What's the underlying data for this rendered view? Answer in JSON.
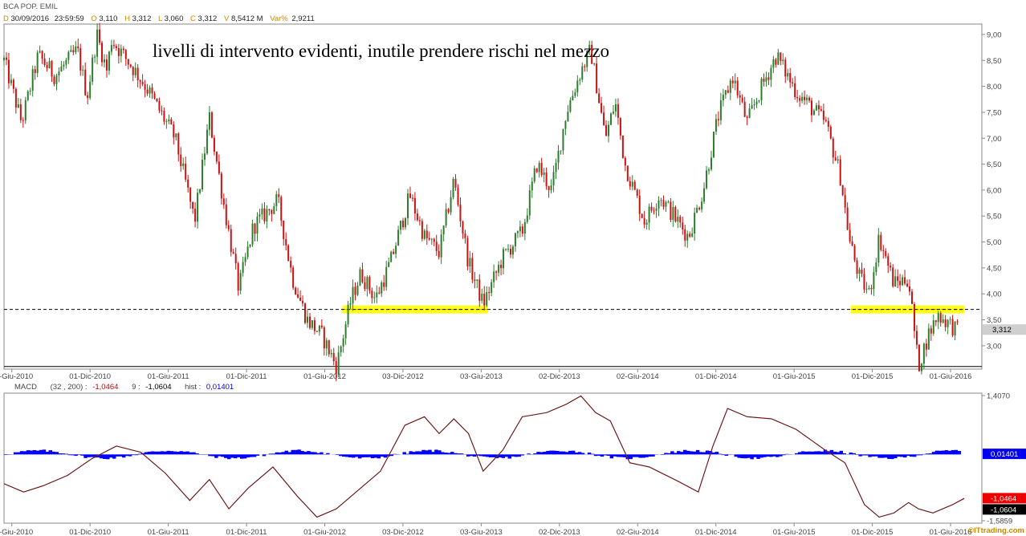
{
  "header": {
    "symbol": "BCA POP. EMIL",
    "d_label": "D",
    "date": "30/09/2016",
    "time": "23:59:59",
    "o_label": "O",
    "open": "3,110",
    "h_label": "H",
    "high": "3,312",
    "l_label": "L",
    "low": "3,060",
    "c_label": "C",
    "close": "3,312",
    "v_label": "V",
    "volume": "8,5412 M",
    "var_label": "Var%",
    "var": "2,9211"
  },
  "macd_header": {
    "name": "MACD",
    "params": "(32 , 200) :",
    "macd_value": "-1,0464",
    "signal_label": "9 :",
    "signal_value": "-1,0604",
    "hist_label": "hist :",
    "hist_value": "0,01401"
  },
  "watermark": "©ITtrading.com",
  "colors": {
    "up": "#2e7d2e",
    "down": "#cc1111",
    "macd_line": "#5a1010",
    "signal_line": "#dd8888",
    "hist": "#0000ff",
    "highlight": "#ffff00",
    "last_price_box": "#cfcfcf",
    "hist_box": "#0000ee",
    "macd_box": "#ee0000",
    "signal_box": "#000000"
  },
  "chart_data": [
    {
      "type": "candlestick",
      "title": "livelli di intervento evidenti, inutile prendere rischi nel mezzo",
      "x_tick_labels": [
        "01-Giu-2010",
        "01-Dic-2010",
        "01-Giu-2011",
        "01-Dic-2011",
        "01-Giu-2012",
        "03-Dic-2012",
        "03-Giu-2013",
        "02-Dic-2013",
        "02-Giu-2014",
        "01-Dic-2014",
        "01-Giu-2015",
        "01-Dic-2015",
        "01-Giu-2016"
      ],
      "y_tick_labels": [
        "3,00",
        "3,50",
        "4,00",
        "4,50",
        "5,00",
        "5,50",
        "6,00",
        "6,50",
        "7,00",
        "7,50",
        "8,00",
        "8,50",
        "9,00"
      ],
      "ylim": [
        2.55,
        9.2
      ],
      "last_price": 3.312,
      "last_price_label": "3,312",
      "resistance_level": 3.7,
      "support_level": 2.6,
      "highlight_zones": [
        {
          "x_from": 0.346,
          "x_to": 0.495,
          "level": 3.7
        },
        {
          "x_from": 0.866,
          "x_to": 0.982,
          "level": 3.7
        }
      ],
      "price_path": [
        [
          0.0,
          8.5
        ],
        [
          0.018,
          7.3
        ],
        [
          0.035,
          8.6
        ],
        [
          0.052,
          8.2
        ],
        [
          0.075,
          8.7
        ],
        [
          0.085,
          7.8
        ],
        [
          0.095,
          9.0
        ],
        [
          0.105,
          8.3
        ],
        [
          0.11,
          8.9
        ],
        [
          0.13,
          8.4
        ],
        [
          0.145,
          8.0
        ],
        [
          0.16,
          7.5
        ],
        [
          0.175,
          7.0
        ],
        [
          0.195,
          5.4
        ],
        [
          0.21,
          7.4
        ],
        [
          0.225,
          5.7
        ],
        [
          0.24,
          4.1
        ],
        [
          0.255,
          5.3
        ],
        [
          0.28,
          5.8
        ],
        [
          0.295,
          4.3
        ],
        [
          0.31,
          3.5
        ],
        [
          0.325,
          3.2
        ],
        [
          0.34,
          2.6
        ],
        [
          0.355,
          3.9
        ],
        [
          0.365,
          4.4
        ],
        [
          0.38,
          3.9
        ],
        [
          0.395,
          4.6
        ],
        [
          0.415,
          5.9
        ],
        [
          0.43,
          5.1
        ],
        [
          0.445,
          4.8
        ],
        [
          0.46,
          6.2
        ],
        [
          0.475,
          4.6
        ],
        [
          0.49,
          3.8
        ],
        [
          0.51,
          4.7
        ],
        [
          0.53,
          5.2
        ],
        [
          0.545,
          6.5
        ],
        [
          0.56,
          6.0
        ],
        [
          0.575,
          7.5
        ],
        [
          0.59,
          8.3
        ],
        [
          0.6,
          8.7
        ],
        [
          0.615,
          7.0
        ],
        [
          0.625,
          7.7
        ],
        [
          0.635,
          6.5
        ],
        [
          0.655,
          5.4
        ],
        [
          0.67,
          5.9
        ],
        [
          0.685,
          5.5
        ],
        [
          0.7,
          5.1
        ],
        [
          0.715,
          6.0
        ],
        [
          0.73,
          7.4
        ],
        [
          0.745,
          8.2
        ],
        [
          0.76,
          7.3
        ],
        [
          0.775,
          8.0
        ],
        [
          0.79,
          8.6
        ],
        [
          0.81,
          7.9
        ],
        [
          0.825,
          7.6
        ],
        [
          0.84,
          7.3
        ],
        [
          0.855,
          6.3
        ],
        [
          0.865,
          5.0
        ],
        [
          0.875,
          4.3
        ],
        [
          0.885,
          4.0
        ],
        [
          0.895,
          5.1
        ],
        [
          0.91,
          4.2
        ],
        [
          0.925,
          4.3
        ],
        [
          0.935,
          2.6
        ],
        [
          0.945,
          3.2
        ],
        [
          0.955,
          3.6
        ],
        [
          0.965,
          3.45
        ],
        [
          0.975,
          3.3
        ]
      ]
    },
    {
      "type": "line",
      "title": "MACD",
      "y_tick_labels": [
        "1,4070",
        "-1,5859"
      ],
      "ylim": [
        -1.5859,
        1.407
      ],
      "series": [
        {
          "name": "MACD",
          "values": [
            [
              0.0,
              -0.7
            ],
            [
              0.02,
              -0.9
            ],
            [
              0.04,
              -0.75
            ],
            [
              0.065,
              -0.5
            ],
            [
              0.09,
              -0.1
            ],
            [
              0.115,
              0.2
            ],
            [
              0.14,
              0.05
            ],
            [
              0.165,
              -0.45
            ],
            [
              0.19,
              -1.1
            ],
            [
              0.21,
              -0.6
            ],
            [
              0.23,
              -1.3
            ],
            [
              0.25,
              -0.8
            ],
            [
              0.275,
              -0.3
            ],
            [
              0.3,
              -1.0
            ],
            [
              0.32,
              -1.5
            ],
            [
              0.34,
              -1.3
            ],
            [
              0.36,
              -0.9
            ],
            [
              0.385,
              -0.4
            ],
            [
              0.41,
              0.7
            ],
            [
              0.43,
              0.9
            ],
            [
              0.445,
              0.5
            ],
            [
              0.46,
              0.85
            ],
            [
              0.475,
              0.5
            ],
            [
              0.49,
              -0.4
            ],
            [
              0.51,
              0.1
            ],
            [
              0.53,
              0.9
            ],
            [
              0.555,
              1.0
            ],
            [
              0.575,
              1.2
            ],
            [
              0.59,
              1.4
            ],
            [
              0.605,
              1.0
            ],
            [
              0.62,
              0.8
            ],
            [
              0.64,
              -0.2
            ],
            [
              0.66,
              -0.3
            ],
            [
              0.69,
              -0.65
            ],
            [
              0.71,
              -0.9
            ],
            [
              0.725,
              0.2
            ],
            [
              0.74,
              1.1
            ],
            [
              0.76,
              0.9
            ],
            [
              0.785,
              0.85
            ],
            [
              0.81,
              0.6
            ],
            [
              0.84,
              0.1
            ],
            [
              0.86,
              -0.2
            ],
            [
              0.88,
              -1.2
            ],
            [
              0.895,
              -1.5
            ],
            [
              0.91,
              -1.4
            ],
            [
              0.925,
              -1.15
            ],
            [
              0.935,
              -1.3
            ],
            [
              0.95,
              -1.4
            ],
            [
              0.97,
              -1.2
            ],
            [
              0.982,
              -1.0464
            ]
          ]
        },
        {
          "name": "Signal",
          "values": [
            [
              0.0,
              -0.7
            ],
            [
              0.02,
              -0.9
            ],
            [
              0.04,
              -0.75
            ],
            [
              0.065,
              -0.5
            ],
            [
              0.09,
              -0.1
            ],
            [
              0.115,
              0.2
            ],
            [
              0.14,
              0.05
            ],
            [
              0.165,
              -0.45
            ],
            [
              0.19,
              -1.1
            ],
            [
              0.21,
              -0.6
            ],
            [
              0.23,
              -1.3
            ],
            [
              0.25,
              -0.8
            ],
            [
              0.275,
              -0.3
            ],
            [
              0.3,
              -1.0
            ],
            [
              0.32,
              -1.5
            ],
            [
              0.34,
              -1.3
            ],
            [
              0.36,
              -0.9
            ],
            [
              0.385,
              -0.4
            ],
            [
              0.41,
              0.7
            ],
            [
              0.43,
              0.9
            ],
            [
              0.445,
              0.5
            ],
            [
              0.46,
              0.85
            ],
            [
              0.475,
              0.5
            ],
            [
              0.49,
              -0.4
            ],
            [
              0.51,
              0.1
            ],
            [
              0.53,
              0.9
            ],
            [
              0.555,
              1.0
            ],
            [
              0.575,
              1.2
            ],
            [
              0.59,
              1.4
            ],
            [
              0.605,
              1.0
            ],
            [
              0.62,
              0.8
            ],
            [
              0.64,
              -0.2
            ],
            [
              0.66,
              -0.3
            ],
            [
              0.69,
              -0.65
            ],
            [
              0.71,
              -0.9
            ],
            [
              0.725,
              0.2
            ],
            [
              0.74,
              1.1
            ],
            [
              0.76,
              0.9
            ],
            [
              0.785,
              0.85
            ],
            [
              0.81,
              0.6
            ],
            [
              0.84,
              0.1
            ],
            [
              0.86,
              -0.2
            ],
            [
              0.88,
              -1.2
            ],
            [
              0.895,
              -1.5
            ],
            [
              0.91,
              -1.4
            ],
            [
              0.925,
              -1.15
            ],
            [
              0.935,
              -1.3
            ],
            [
              0.95,
              -1.4
            ],
            [
              0.97,
              -1.2
            ],
            [
              0.982,
              -1.0604
            ]
          ]
        }
      ],
      "hist_last": 0.01401,
      "value_labels": {
        "hist": "0,01401",
        "macd": "-1,0464",
        "signal": "-1,0604"
      }
    }
  ]
}
